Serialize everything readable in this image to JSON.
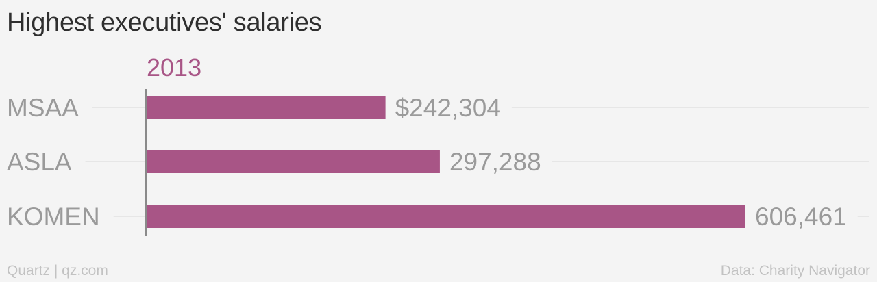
{
  "title": "Highest executives' salaries",
  "footer": {
    "source_left": "Quartz | qz.com",
    "source_right": "Data: Charity Navigator"
  },
  "colors": {
    "bar": "#a85586",
    "category_label": "#9a9a9a",
    "value_label": "#9a9a9a",
    "gridline": "#e6e6e6",
    "baseline": "#8a8a8a"
  },
  "chart_data": {
    "type": "bar",
    "orientation": "horizontal",
    "title": "Highest executives' salaries",
    "categories": [
      "MSAA",
      "ASLA",
      "KOMEN"
    ],
    "series": [
      {
        "name": "2013",
        "values": [
          242304,
          297288,
          606461
        ],
        "labels": [
          "$242,304",
          "297,288",
          "606,461"
        ]
      }
    ],
    "xlim": [
      0,
      606461
    ],
    "grid": true,
    "legend": "top-left"
  }
}
